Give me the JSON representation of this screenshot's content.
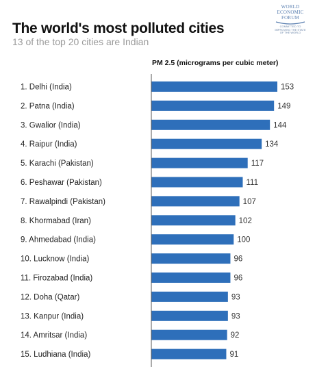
{
  "header": {
    "title": "The world's most polluted cities",
    "subtitle": "13 of the top 20 cities are Indian"
  },
  "logo": {
    "text": "WORLD\nECONOMIC\nFORUM",
    "tagline": "COMMITTED TO\nIMPROVING THE STATE\nOF THE WORLD",
    "color": "#5a7fb0"
  },
  "chart_data": {
    "type": "bar",
    "orientation": "horizontal",
    "title": "The world's most polluted cities",
    "subtitle": "13 of the top 20 cities are Indian",
    "xlabel": "PM 2.5 (micrograms per cubic meter)",
    "ylabel": "",
    "xlim": [
      0,
      160
    ],
    "grid": false,
    "legend": "none",
    "bar_color": "#2e6fba",
    "axis_color": "#555555",
    "categories": [
      "1. Delhi (India)",
      "2. Patna (India)",
      "3. Gwalior (India)",
      "4. Raipur (India)",
      "5. Karachi (Pakistan)",
      "6. Peshawar (Pakistan)",
      "7. Rawalpindi (Pakistan)",
      "8. Khormabad (Iran)",
      "9. Ahmedabad (India)",
      "10. Lucknow (India)",
      "11. Firozabad (India)",
      "12. Doha (Qatar)",
      "13. Kanpur (India)",
      "14. Amritsar (India)",
      "15. Ludhiana (India)"
    ],
    "values": [
      153,
      149,
      144,
      134,
      117,
      111,
      107,
      102,
      100,
      96,
      96,
      93,
      93,
      92,
      91
    ]
  }
}
